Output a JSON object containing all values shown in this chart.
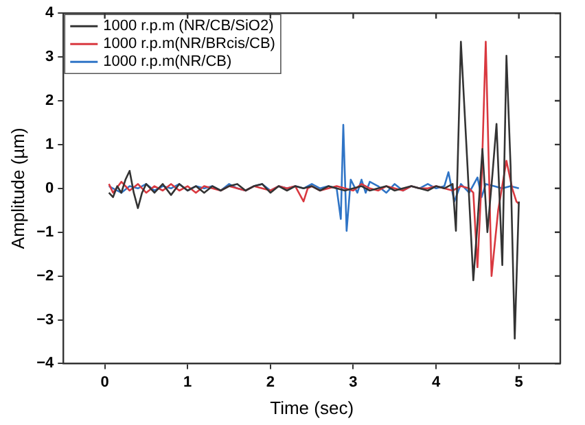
{
  "chart_data": {
    "type": "line",
    "xlabel": "Time (sec)",
    "ylabel": "Amplitude (µm)",
    "xlim": [
      -0.5,
      5.5
    ],
    "xticks": [
      0,
      1,
      2,
      3,
      4,
      5
    ],
    "ylim": [
      -4,
      4
    ],
    "yticks": [
      -4,
      -3,
      -2,
      -1,
      0,
      1,
      2,
      3,
      4
    ],
    "grid": false,
    "legend": "top left",
    "marker": "none",
    "line_style": "solid",
    "series": [
      {
        "name": "1000 r.p.m (NR/CB/SiO2)",
        "color": "#333333",
        "x": [
          0.05,
          0.1,
          0.15,
          0.2,
          0.25,
          0.3,
          0.35,
          0.4,
          0.45,
          0.5,
          0.6,
          0.7,
          0.8,
          0.9,
          1.0,
          1.1,
          1.2,
          1.3,
          1.4,
          1.5,
          1.6,
          1.7,
          1.8,
          1.9,
          2.0,
          2.1,
          2.2,
          2.3,
          2.4,
          2.5,
          2.6,
          2.7,
          2.8,
          2.9,
          3.0,
          3.1,
          3.2,
          3.3,
          3.4,
          3.5,
          3.6,
          3.7,
          3.8,
          3.9,
          4.0,
          4.1,
          4.2,
          4.24,
          4.3,
          4.38,
          4.45,
          4.5,
          4.56,
          4.62,
          4.68,
          4.73,
          4.8,
          4.85,
          4.9,
          4.95,
          5.0
        ],
        "values": [
          -0.1,
          -0.2,
          0.05,
          -0.1,
          0.2,
          0.4,
          -0.1,
          -0.45,
          -0.1,
          0.1,
          -0.1,
          0.1,
          -0.15,
          0.1,
          -0.05,
          0.05,
          -0.1,
          0.05,
          -0.05,
          0.05,
          0.1,
          -0.05,
          0.05,
          0.1,
          -0.1,
          0.05,
          -0.05,
          0.05,
          0.0,
          0.05,
          -0.05,
          0.05,
          0.0,
          -0.05,
          0.0,
          0.05,
          -0.05,
          0.0,
          0.05,
          -0.05,
          0.0,
          0.05,
          0.0,
          -0.05,
          0.05,
          0.0,
          0.1,
          -0.97,
          3.35,
          0.5,
          -2.1,
          -0.8,
          0.9,
          -1.0,
          0.3,
          1.47,
          -1.75,
          3.03,
          0.5,
          -3.43,
          -0.3
        ]
      },
      {
        "name": "1000 r.p.m(NR/BRcis/CB)",
        "color": "#d9383f",
        "x": [
          0.05,
          0.1,
          0.2,
          0.3,
          0.4,
          0.5,
          0.6,
          0.7,
          0.8,
          0.9,
          1.0,
          1.1,
          1.2,
          1.3,
          1.4,
          1.5,
          1.6,
          1.7,
          1.8,
          1.9,
          2.0,
          2.1,
          2.2,
          2.3,
          2.4,
          2.45,
          2.5,
          2.6,
          2.7,
          2.8,
          2.9,
          3.0,
          3.1,
          3.2,
          3.3,
          3.4,
          3.5,
          3.6,
          3.7,
          3.8,
          3.9,
          4.0,
          4.1,
          4.2,
          4.3,
          4.4,
          4.45,
          4.5,
          4.55,
          4.6,
          4.67,
          4.75,
          4.85,
          4.92,
          4.97,
          5.0
        ],
        "values": [
          0.1,
          -0.1,
          0.15,
          -0.05,
          0.1,
          -0.1,
          0.05,
          -0.05,
          0.1,
          -0.05,
          0.05,
          -0.1,
          0.05,
          0.0,
          -0.05,
          0.05,
          0.0,
          -0.05,
          0.05,
          0.0,
          -0.05,
          0.05,
          0.0,
          0.05,
          -0.3,
          0.0,
          0.05,
          -0.05,
          0.0,
          0.05,
          0.0,
          -0.05,
          0.1,
          0.0,
          -0.05,
          0.05,
          0.0,
          -0.05,
          0.05,
          0.0,
          0.0,
          0.05,
          0.0,
          -0.05,
          0.05,
          0.0,
          -0.1,
          -1.8,
          0.2,
          3.35,
          -2.0,
          -0.5,
          0.63,
          0.0,
          -0.3,
          -0.35
        ]
      },
      {
        "name": "1000 r.p.m(NR/CB)",
        "color": "#2f74c6",
        "x": [
          0.05,
          0.1,
          0.2,
          0.3,
          0.4,
          0.5,
          0.6,
          0.7,
          0.8,
          0.9,
          1.0,
          1.1,
          1.2,
          1.3,
          1.4,
          1.5,
          1.6,
          1.7,
          1.8,
          1.9,
          2.0,
          2.1,
          2.2,
          2.3,
          2.4,
          2.5,
          2.6,
          2.7,
          2.8,
          2.85,
          2.88,
          2.92,
          2.97,
          3.05,
          3.1,
          3.15,
          3.2,
          3.3,
          3.4,
          3.5,
          3.6,
          3.7,
          3.8,
          3.9,
          4.0,
          4.1,
          4.15,
          4.22,
          4.3,
          4.4,
          4.5,
          4.55,
          4.6,
          4.7,
          4.8,
          4.9,
          5.0
        ],
        "values": [
          0.05,
          0.0,
          -0.1,
          0.05,
          0.0,
          0.1,
          -0.05,
          0.05,
          0.0,
          0.1,
          -0.05,
          0.05,
          0.0,
          0.05,
          -0.05,
          0.1,
          0.0,
          -0.05,
          0.05,
          0.1,
          -0.05,
          0.05,
          0.0,
          0.05,
          0.0,
          0.1,
          0.0,
          0.05,
          0.0,
          -0.7,
          1.45,
          -0.97,
          0.2,
          -0.1,
          0.2,
          -0.1,
          0.15,
          0.05,
          -0.1,
          0.1,
          -0.05,
          0.05,
          0.0,
          0.1,
          0.0,
          0.05,
          0.37,
          -0.3,
          0.1,
          -0.1,
          0.25,
          -0.2,
          0.1,
          0.05,
          0.0,
          0.05,
          0.0
        ]
      }
    ]
  }
}
